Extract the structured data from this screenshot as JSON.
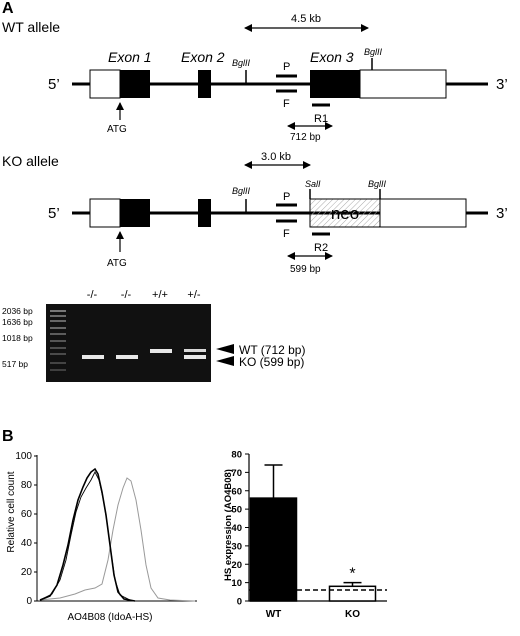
{
  "panel_a": {
    "label": "A",
    "wt": {
      "title": "WT allele",
      "exon1": "Exon 1",
      "exon2": "Exon 2",
      "exon3": "Exon 3",
      "end5": "5’",
      "end3": "3’",
      "distance": "4.5 kb",
      "bgl_left": "BglII",
      "bgl_right": "BglII",
      "primer_p": "P",
      "primer_f": "F",
      "primer_r": "R1",
      "atg": "ATG",
      "product": "712 bp"
    },
    "ko": {
      "title": "KO allele",
      "end5": "5’",
      "end3": "3’",
      "distance": "3.0 kb",
      "bgl_left": "BglII",
      "sal": "SalI",
      "bgl_right": "BglII",
      "neo": "neo",
      "primer_p": "P",
      "primer_f": "F",
      "primer_r": "R2",
      "atg": "ATG",
      "product": "599 bp"
    },
    "gel": {
      "lanes": [
        "-/-",
        "-/-",
        "+/+",
        "+/-"
      ],
      "ladder": [
        "2036 bp",
        "1636 bp",
        "1018 bp",
        "517 bp"
      ],
      "band_wt": "WT (712 bp)",
      "band_ko": "KO (599 bp)"
    }
  },
  "panel_b": {
    "label": "B",
    "histogram": {
      "ylabel": "Relative cell count",
      "xlabel": "AO4B08 (IdoA-HS)",
      "yticks": [
        "0",
        "20",
        "40",
        "60",
        "80",
        "100"
      ]
    },
    "bar_chart": {
      "ylabel": "HS expression (AO4B08)",
      "yticks": [
        "0",
        "10",
        "20",
        "30",
        "40",
        "50",
        "60",
        "70",
        "80"
      ],
      "significance": "*"
    }
  },
  "chart_data": [
    {
      "type": "bar",
      "categories": [
        "WT",
        "KO"
      ],
      "values": [
        56,
        8
      ],
      "error": [
        18,
        2
      ],
      "ylabel": "HS expression (AO4B08)",
      "ylim": [
        0,
        80
      ],
      "colors": [
        "#000000",
        "#ffffff"
      ],
      "dashed_reference": 6
    }
  ]
}
